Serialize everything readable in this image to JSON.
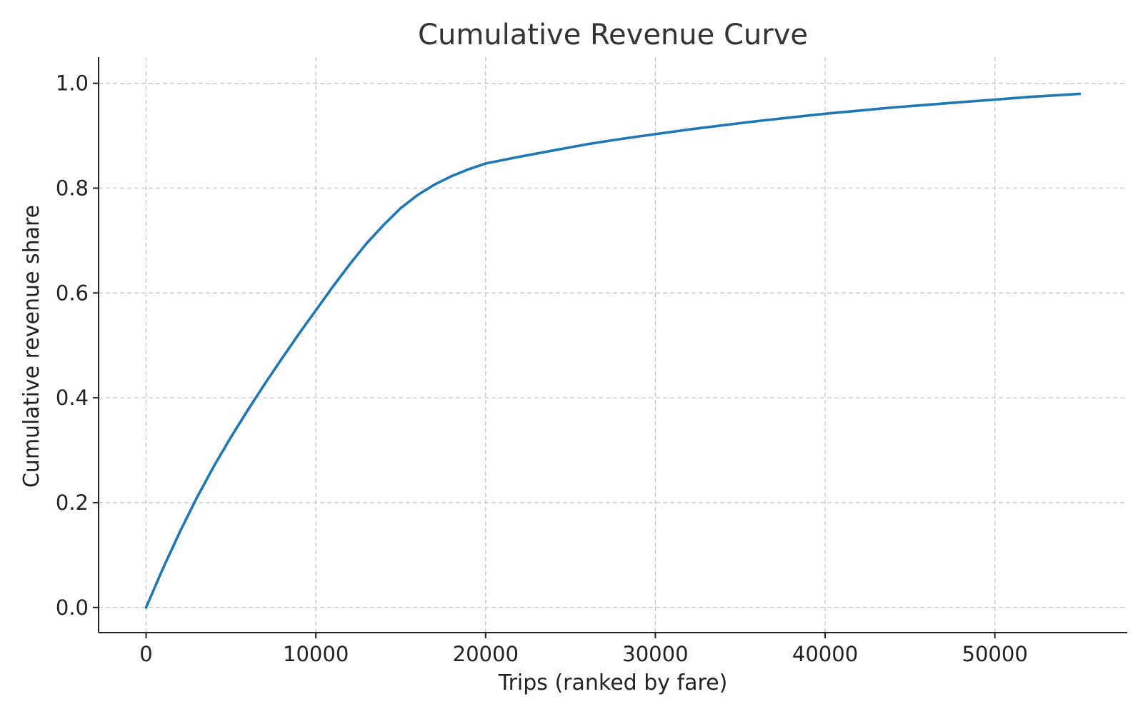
{
  "chart_data": {
    "type": "line",
    "title": "Cumulative Revenue Curve",
    "xlabel": "Trips (ranked by fare)",
    "ylabel": "Cumulative revenue share",
    "xlim": [
      -2800,
      57800
    ],
    "ylim": [
      -0.048,
      1.05
    ],
    "x_ticks": [
      0,
      10000,
      20000,
      30000,
      40000,
      50000
    ],
    "x_tick_labels": [
      "0",
      "10000",
      "20000",
      "30000",
      "40000",
      "50000"
    ],
    "y_ticks": [
      0.0,
      0.2,
      0.4,
      0.6,
      0.8,
      1.0
    ],
    "y_tick_labels": [
      "0.0",
      "0.2",
      "0.4",
      "0.6",
      "0.8",
      "1.0"
    ],
    "grid": true,
    "series": [
      {
        "color": "#1f77b4",
        "x": [
          0,
          1000,
          2000,
          3000,
          4000,
          5000,
          6000,
          7000,
          8000,
          9000,
          10000,
          11000,
          12000,
          13000,
          14000,
          15000,
          16000,
          17000,
          18000,
          19000,
          20000,
          22000,
          24000,
          26000,
          28000,
          30000,
          32000,
          34000,
          36000,
          38000,
          40000,
          42000,
          44000,
          46000,
          48000,
          50000,
          52000,
          54000,
          55000
        ],
        "y": [
          0.0,
          0.075,
          0.145,
          0.21,
          0.27,
          0.325,
          0.377,
          0.427,
          0.475,
          0.522,
          0.567,
          0.612,
          0.655,
          0.695,
          0.73,
          0.762,
          0.787,
          0.807,
          0.823,
          0.836,
          0.847,
          0.86,
          0.872,
          0.884,
          0.894,
          0.903,
          0.912,
          0.92,
          0.928,
          0.935,
          0.942,
          0.948,
          0.954,
          0.959,
          0.964,
          0.969,
          0.974,
          0.978,
          0.98
        ]
      }
    ]
  }
}
